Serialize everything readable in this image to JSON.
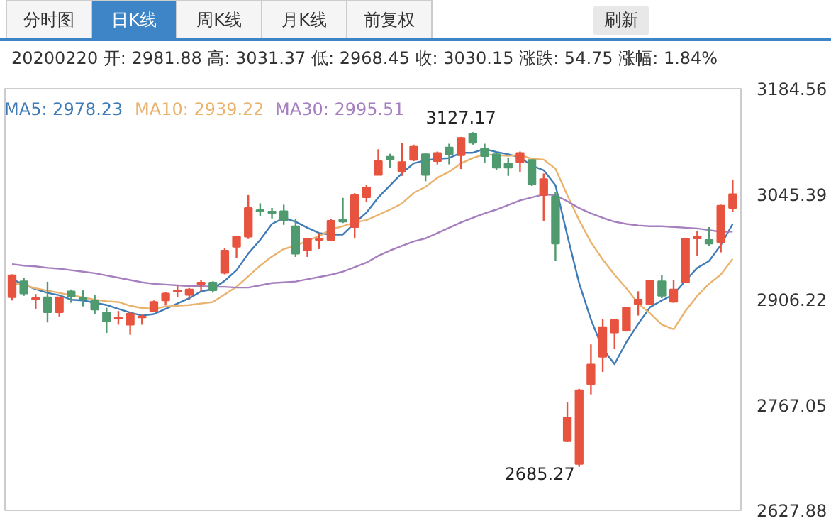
{
  "chart_data": {
    "type": "candlestick",
    "subtitle": "20200220 开: 2981.88 高: 3031.37 低: 2968.45 收: 3030.15 涨跌: 54.75 涨幅: 1.84%",
    "annotations": [
      "分时图",
      "日K线",
      "周K线",
      "月K线",
      "前复权",
      "刷新",
      {
        "text": "3127.17",
        "y": 3127.17
      },
      "2685.27"
    ],
    "categories": [
      null,
      null,
      null,
      null,
      null,
      null,
      null,
      null,
      null,
      null,
      null,
      null,
      null,
      null,
      null,
      null,
      null,
      null,
      null,
      null,
      null,
      null,
      null,
      null,
      null,
      null,
      null,
      null,
      null,
      null,
      null,
      null,
      null,
      null,
      null,
      null,
      null,
      null,
      null,
      null,
      null,
      null,
      null,
      null,
      null,
      null,
      null,
      null,
      null,
      null,
      null,
      null,
      null,
      null,
      null,
      null,
      null,
      null,
      null,
      null,
      null,
      null
    ],
    "ohlc": [
      [
        2909.3,
        2939.5,
        2905.0,
        2938.3
      ],
      [
        2930.4,
        2934.6,
        2911.1,
        2914.1
      ],
      [
        2906.2,
        2913.5,
        2894.1,
        2908.0
      ],
      [
        2909.3,
        2929.8,
        2876.0,
        2889.3
      ],
      [
        2889.3,
        2909.3,
        2883.9,
        2909.3
      ],
      [
        2917.1,
        2919.5,
        2902.0,
        2910.5
      ],
      [
        2908.0,
        2918.3,
        2897.2,
        2906.8
      ],
      [
        2905.0,
        2912.3,
        2886.9,
        2892.9
      ],
      [
        2889.3,
        2895.4,
        2862.1,
        2877.2
      ],
      [
        2880.8,
        2891.1,
        2873.0,
        2882.0
      ],
      [
        2873.0,
        2889.3,
        2859.7,
        2887.5
      ],
      [
        2882.6,
        2886.3,
        2873.0,
        2883.9
      ],
      [
        2891.1,
        2905.0,
        2889.3,
        2903.2
      ],
      [
        2905.0,
        2915.9,
        2898.4,
        2914.1
      ],
      [
        2917.1,
        2924.4,
        2909.3,
        2918.3
      ],
      [
        2912.3,
        2921.4,
        2906.2,
        2919.5
      ],
      [
        2926.8,
        2931.6,
        2917.1,
        2928.6
      ],
      [
        2928.6,
        2930.4,
        2915.3,
        2918.3
      ],
      [
        2941.3,
        2974.0,
        2939.5,
        2970.9
      ],
      [
        2975.8,
        2989.1,
        2960.7,
        2989.1
      ],
      [
        2989.1,
        3044.1,
        2986.1,
        3027.2
      ],
      [
        3024.2,
        3033.3,
        3016.3,
        3022.4
      ],
      [
        3022.4,
        3027.2,
        3013.3,
        3020.5
      ],
      [
        3023.0,
        3031.4,
        3004.8,
        3010.3
      ],
      [
        3003.0,
        3012.1,
        2962.5,
        2966.7
      ],
      [
        2971.0,
        2986.7,
        2962.5,
        2986.7
      ],
      [
        2984.9,
        2993.9,
        2972.8,
        2986.1
      ],
      [
        2984.9,
        3012.1,
        2983.7,
        3010.3
      ],
      [
        3011.5,
        3040.5,
        3007.2,
        3009.1
      ],
      [
        3001.8,
        3046.6,
        2986.7,
        3044.1
      ],
      [
        3041.1,
        3057.4,
        3034.5,
        3054.4
      ],
      [
        3070.7,
        3104.6,
        3070.7,
        3088.9
      ],
      [
        3094.9,
        3098.6,
        3079.8,
        3091.3
      ],
      [
        3075.6,
        3113.1,
        3069.5,
        3087.7
      ],
      [
        3090.7,
        3110.7,
        3088.9,
        3108.8
      ],
      [
        3098.0,
        3099.8,
        3062.3,
        3070.7
      ],
      [
        3088.9,
        3101.6,
        3084.7,
        3099.8
      ],
      [
        3107.0,
        3111.9,
        3084.7,
        3098.0
      ],
      [
        3096.8,
        3120.9,
        3078.6,
        3119.7
      ],
      [
        3125.2,
        3127.17,
        3110.7,
        3113.1
      ],
      [
        3105.8,
        3111.9,
        3086.5,
        3095.5
      ],
      [
        3098.0,
        3099.8,
        3076.8,
        3080.4
      ],
      [
        3085.9,
        3093.7,
        3069.5,
        3080.4
      ],
      [
        3087.7,
        3101.6,
        3074.4,
        3099.8
      ],
      [
        3090.7,
        3090.7,
        3056.2,
        3058.6
      ],
      [
        3044.1,
        3072.6,
        3010.3,
        3065.3
      ],
      [
        3042.3,
        3048.4,
        2957.6,
        2980.0
      ],
      [
        2720.0,
        2770.2,
        2718.8,
        2750.2
      ],
      [
        2689.0,
        2788.3,
        2685.27,
        2786.5
      ],
      [
        2794.4,
        2847.0,
        2781.0,
        2820.4
      ],
      [
        2830.6,
        2880.8,
        2810.7,
        2870.0
      ],
      [
        2862.7,
        2879.0,
        2841.5,
        2879.0
      ],
      [
        2865.1,
        2895.4,
        2863.9,
        2895.4
      ],
      [
        2900.2,
        2917.1,
        2885.1,
        2906.2
      ],
      [
        2900.2,
        2931.6,
        2899.0,
        2931.6
      ],
      [
        2930.4,
        2938.3,
        2908.1,
        2911.1
      ],
      [
        2903.2,
        2931.6,
        2902.0,
        2919.5
      ],
      [
        2929.2,
        2987.9,
        2929.2,
        2986.7
      ],
      [
        2986.7,
        2997.0,
        2963.7,
        2989.1
      ],
      [
        2984.9,
        3001.8,
        2977.0,
        2980.0
      ],
      [
        2981.88,
        3031.37,
        2968.45,
        3030.15
      ],
      [
        3027.2,
        3064.7,
        3022.4,
        3045.4
      ]
    ],
    "colors": [
      "#e8533f",
      "#4f9a6f",
      "#e8533f",
      "#4f9a6f",
      "#e8533f",
      "#4f9a6f",
      "#4f9a6f",
      "#4f9a6f",
      "#4f9a6f",
      "#e8533f",
      "#e8533f",
      "#e8533f",
      "#e8533f",
      "#e8533f",
      "#e8533f",
      "#e8533f",
      "#e8533f",
      "#4f9a6f",
      "#e8533f",
      "#e8533f",
      "#e8533f",
      "#4f9a6f",
      "#4f9a6f",
      "#4f9a6f",
      "#4f9a6f",
      "#e8533f",
      "#e8533f",
      "#e8533f",
      "#4f9a6f",
      "#e8533f",
      "#e8533f",
      "#e8533f",
      "#4f9a6f",
      "#e8533f",
      "#e8533f",
      "#4f9a6f",
      "#e8533f",
      "#4f9a6f",
      "#e8533f",
      "#4f9a6f",
      "#4f9a6f",
      "#4f9a6f",
      "#4f9a6f",
      "#e8533f",
      "#4f9a6f",
      "#e8533f",
      "#4f9a6f",
      "#e8533f",
      "#e8533f",
      "#e8533f",
      "#e8533f",
      "#e8533f",
      "#e8533f",
      "#e8533f",
      "#e8533f",
      "#4f9a6f",
      "#e8533f",
      "#e8533f",
      "#e8533f",
      "#4f9a6f",
      "#e8533f",
      "#e8533f"
    ],
    "series": [
      {
        "name": "MA5: 2978.23",
        "type": "line",
        "color": "#3f7bb6",
        "values": [
          2933,
          2926,
          2920,
          2915,
          2912,
          2906,
          2905,
          2902,
          2899,
          2894,
          2889,
          2885,
          2887,
          2894,
          2901,
          2908,
          2917,
          2920,
          2931,
          2945,
          2967,
          2985,
          3006,
          3014,
          3009,
          3001,
          2994,
          2992,
          2992,
          3007,
          3021,
          3041,
          3057,
          3073,
          3086,
          3090,
          3092,
          3093,
          3100,
          3100,
          3105,
          3101,
          3098,
          3094,
          3083,
          3077,
          3057,
          2991,
          2928,
          2880,
          2841,
          2821,
          2850,
          2874,
          2896,
          2905,
          2913,
          2931,
          2948,
          2957,
          2978.23,
          3006
        ]
      },
      {
        "name": "MA10: 2939.22",
        "type": "line",
        "color": "#e9b36e",
        "values": [
          2928,
          2925,
          2921,
          2918,
          2915,
          2912,
          2909,
          2906,
          2904,
          2903,
          2898,
          2895,
          2894,
          2897,
          2898,
          2899,
          2901,
          2903,
          2913,
          2923,
          2937,
          2951,
          2963,
          2973,
          2977,
          2984,
          2990,
          2999,
          3003,
          3008,
          3011,
          3018,
          3025,
          3033,
          3047,
          3055,
          3067,
          3075,
          3086,
          3093,
          3098,
          3097,
          3096,
          3097,
          3092,
          3091,
          3079,
          3044,
          3011,
          2982,
          2959,
          2939,
          2921,
          2901,
          2888,
          2873,
          2867,
          2891,
          2911,
          2927,
          2939.22,
          2960
        ]
      },
      {
        "name": "MA30: 2995.51",
        "type": "line",
        "color": "#a67fbf",
        "values": [
          2953,
          2951,
          2950,
          2948,
          2947,
          2945,
          2943,
          2941,
          2938,
          2935,
          2932,
          2929,
          2927,
          2926,
          2925,
          2924,
          2924,
          2923,
          2923,
          2922,
          2922,
          2925,
          2928,
          2929,
          2930,
          2933,
          2936,
          2939,
          2943,
          2949,
          2955,
          2964,
          2971,
          2977,
          2983,
          2987,
          2994,
          3001,
          3008,
          3014,
          3020,
          3025,
          3031,
          3037,
          3041,
          3045,
          3044,
          3036,
          3027,
          3020,
          3014,
          3009,
          3006,
          3004,
          3003,
          3003,
          3002,
          3001,
          3000,
          2998,
          2995.51,
          2996
        ]
      }
    ],
    "ylim": [
      2627.88,
      3184.56
    ],
    "yticks": [
      2627.88,
      2767.05,
      2906.22,
      3045.39,
      3184.56
    ],
    "grid": false,
    "legend": "top left",
    "tick_labels": "y"
  }
}
